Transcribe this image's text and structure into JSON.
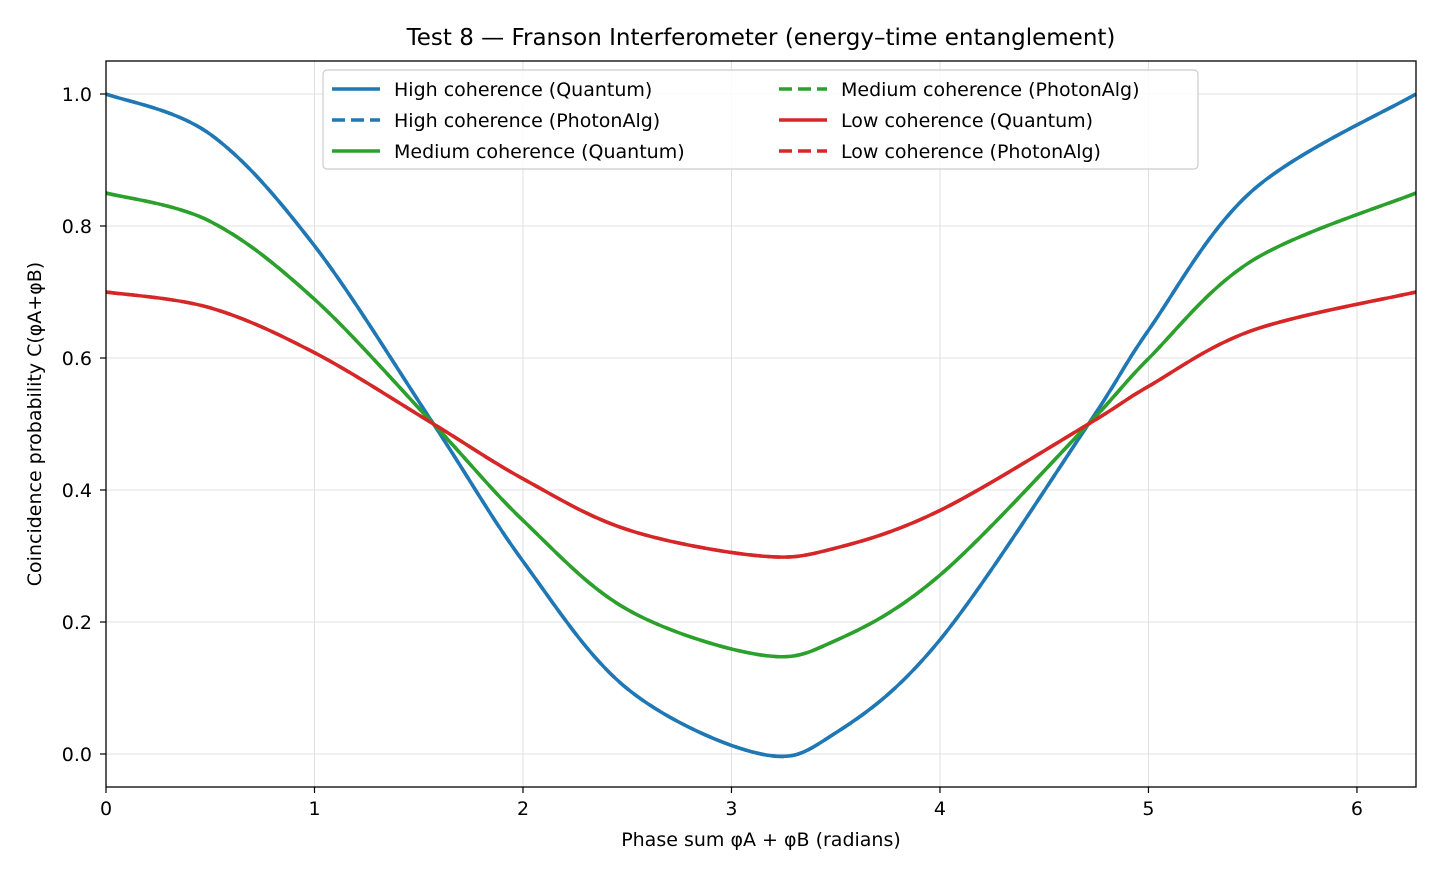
{
  "chart_data": {
    "type": "line",
    "title": "Test 8 — Franson Interferometer (energy–time entanglement)",
    "xlabel": "Phase sum φA + φB (radians)",
    "ylabel": "Coincidence probability C(φA+φB)",
    "xlim": [
      0,
      6.2832
    ],
    "ylim": [
      -0.05,
      1.05
    ],
    "xticks": [
      0,
      1,
      2,
      3,
      4,
      5,
      6
    ],
    "yticks": [
      0.0,
      0.2,
      0.4,
      0.6,
      0.8,
      1.0
    ],
    "ytick_labels": [
      "0.0",
      "0.2",
      "0.4",
      "0.6",
      "0.8",
      "1.0"
    ],
    "grid": true,
    "legend_position": "upper center",
    "legend_columns": 2,
    "x": [
      0,
      0.5,
      1.0,
      1.5708,
      2.0,
      2.5,
      3.1416,
      3.5,
      4.0,
      4.7124,
      5.0,
      5.5,
      6.2832
    ],
    "series": [
      {
        "name": "High coherence (Quantum)",
        "color": "#1f77b4",
        "dash": "solid",
        "values": [
          1.0,
          0.939,
          0.77,
          0.5,
          0.292,
          0.099,
          0.0,
          0.032,
          0.173,
          0.5,
          0.642,
          0.854,
          1.0
        ]
      },
      {
        "name": "High coherence (PhotonAlg)",
        "color": "#1f77b4",
        "dash": "dashed",
        "values": [
          1.0,
          0.939,
          0.77,
          0.5,
          0.292,
          0.099,
          0.0,
          0.032,
          0.173,
          0.5,
          0.642,
          0.854,
          1.0
        ]
      },
      {
        "name": "Medium coherence (Quantum)",
        "color": "#2ca02c",
        "dash": "solid",
        "values": [
          0.85,
          0.807,
          0.689,
          0.5,
          0.354,
          0.219,
          0.15,
          0.172,
          0.271,
          0.5,
          0.599,
          0.748,
          0.85
        ]
      },
      {
        "name": "Medium coherence (PhotonAlg)",
        "color": "#2ca02c",
        "dash": "dashed",
        "values": [
          0.85,
          0.807,
          0.689,
          0.5,
          0.354,
          0.219,
          0.15,
          0.172,
          0.271,
          0.5,
          0.599,
          0.748,
          0.85
        ]
      },
      {
        "name": "Low coherence (Quantum)",
        "color": "#d62728",
        "dash": "solid",
        "values": [
          0.7,
          0.676,
          0.608,
          0.5,
          0.417,
          0.34,
          0.3,
          0.312,
          0.369,
          0.5,
          0.557,
          0.642,
          0.7
        ]
      },
      {
        "name": "Low coherence (PhotonAlg)",
        "color": "#d62728",
        "dash": "dashed",
        "values": [
          0.7,
          0.676,
          0.608,
          0.5,
          0.417,
          0.34,
          0.3,
          0.312,
          0.369,
          0.5,
          0.557,
          0.642,
          0.7
        ]
      }
    ]
  }
}
